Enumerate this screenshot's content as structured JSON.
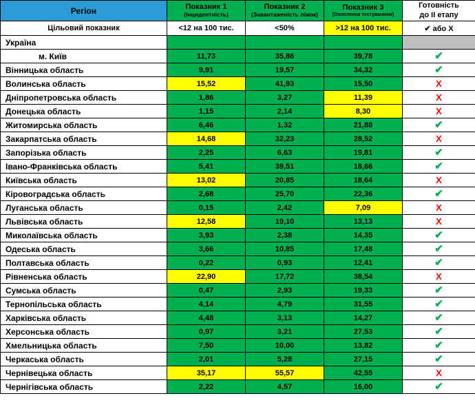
{
  "table": {
    "header": {
      "region": "Регіон",
      "indicators": [
        {
          "title": "Показник 1",
          "subtitle": "(Інцидентність)"
        },
        {
          "title": "Показник 2",
          "subtitle": "(Завантаженість ліжок)"
        },
        {
          "title": "Показник 3",
          "subtitle": "(Охоплення тестуванням)"
        }
      ],
      "readiness_title": "Готовність",
      "readiness_subtitle": "до II етапу"
    },
    "target": {
      "label": "Цільовий показник",
      "values": [
        "<12 на 100 тис.",
        "<50%",
        ">12 на 100 тис."
      ],
      "readiness": "✔ або Х"
    }
  },
  "symbols": {
    "check": "✔",
    "cross": "Х"
  },
  "colors": {
    "header_blue": "#2D9BD6",
    "cell_green": "#00B050",
    "highlight_yellow": "#FFFF00",
    "empty_gray": "#BFBFBF",
    "check_green": "#00B050",
    "cross_red": "#FF0000"
  },
  "chart_data": {
    "type": "table",
    "title": "Готовність регіонів до II етапу",
    "columns": [
      "Регіон",
      "Показник 1 (Інцидентність)",
      "Показник 2 (Завантаженість ліжок)",
      "Показник 3 (Охоплення тестуванням)",
      "Готовність до II етапу"
    ],
    "targets": [
      "<12 на 100 тис.",
      "<50%",
      ">12 на 100 тис.",
      "✔ або Х"
    ],
    "rows": [
      {
        "region": "Україна",
        "values": [
          "",
          "",
          ""
        ],
        "highlight": [
          false,
          false,
          false
        ],
        "status": "empty"
      },
      {
        "region": "м. Київ",
        "indent": true,
        "values": [
          "11,73",
          "35,86",
          "39,78"
        ],
        "highlight": [
          false,
          false,
          false
        ],
        "status": "check"
      },
      {
        "region": "Вінницька область",
        "values": [
          "9,91",
          "19,57",
          "34,32"
        ],
        "highlight": [
          false,
          false,
          false
        ],
        "status": "check"
      },
      {
        "region": "Волинська область",
        "values": [
          "15,52",
          "41,93",
          "15,50"
        ],
        "highlight": [
          true,
          false,
          false
        ],
        "status": "cross"
      },
      {
        "region": "Дніпропетровська область",
        "values": [
          "1,86",
          "3,27",
          "11,39"
        ],
        "highlight": [
          false,
          false,
          true
        ],
        "status": "cross"
      },
      {
        "region": "Донецька область",
        "values": [
          "1,15",
          "2,14",
          "8,30"
        ],
        "highlight": [
          false,
          false,
          true
        ],
        "status": "cross"
      },
      {
        "region": "Житомирська область",
        "values": [
          "6,46",
          "1,32",
          "21,88"
        ],
        "highlight": [
          false,
          false,
          false
        ],
        "status": "check"
      },
      {
        "region": "Закарпатська область",
        "values": [
          "14,68",
          "32,23",
          "28,52"
        ],
        "highlight": [
          true,
          false,
          false
        ],
        "status": "cross"
      },
      {
        "region": "Запорізька область",
        "values": [
          "2,25",
          "6,63",
          "19,81"
        ],
        "highlight": [
          false,
          false,
          false
        ],
        "status": "check"
      },
      {
        "region": "Івано-Франківська область",
        "values": [
          "5,41",
          "39,51",
          "18,66"
        ],
        "highlight": [
          false,
          false,
          false
        ],
        "status": "check"
      },
      {
        "region": "Київська область",
        "values": [
          "13,02",
          "20,85",
          "18,64"
        ],
        "highlight": [
          true,
          false,
          false
        ],
        "status": "cross"
      },
      {
        "region": "Кіровоградська область",
        "values": [
          "2,68",
          "25,70",
          "22,36"
        ],
        "highlight": [
          false,
          false,
          false
        ],
        "status": "check"
      },
      {
        "region": "Луганська область",
        "values": [
          "0,15",
          "2,42",
          "7,09"
        ],
        "highlight": [
          false,
          false,
          true
        ],
        "status": "cross"
      },
      {
        "region": "Львівська область",
        "values": [
          "12,58",
          "19,10",
          "13,13"
        ],
        "highlight": [
          true,
          false,
          false
        ],
        "status": "cross"
      },
      {
        "region": "Миколаївська область",
        "values": [
          "3,93",
          "2,38",
          "14,35"
        ],
        "highlight": [
          false,
          false,
          false
        ],
        "status": "check"
      },
      {
        "region": "Одеська область",
        "values": [
          "3,66",
          "10,85",
          "17,48"
        ],
        "highlight": [
          false,
          false,
          false
        ],
        "status": "check"
      },
      {
        "region": "Полтавська область",
        "values": [
          "0,22",
          "0,93",
          "12,41"
        ],
        "highlight": [
          false,
          false,
          false
        ],
        "status": "check"
      },
      {
        "region": "Рівненська область",
        "values": [
          "22,90",
          "17,72",
          "38,54"
        ],
        "highlight": [
          true,
          false,
          false
        ],
        "status": "cross"
      },
      {
        "region": "Сумська область",
        "values": [
          "0,47",
          "2,93",
          "19,33"
        ],
        "highlight": [
          false,
          false,
          false
        ],
        "status": "check"
      },
      {
        "region": "Тернопільська область",
        "values": [
          "4,14",
          "4,79",
          "31,55"
        ],
        "highlight": [
          false,
          false,
          false
        ],
        "status": "check"
      },
      {
        "region": "Харківська область",
        "values": [
          "4,48",
          "3,13",
          "14,27"
        ],
        "highlight": [
          false,
          false,
          false
        ],
        "status": "check"
      },
      {
        "region": "Херсонська область",
        "values": [
          "0,97",
          "3,21",
          "27,53"
        ],
        "highlight": [
          false,
          false,
          false
        ],
        "status": "check"
      },
      {
        "region": "Хмельницька область",
        "values": [
          "7,50",
          "10,00",
          "13,82"
        ],
        "highlight": [
          false,
          false,
          false
        ],
        "status": "check"
      },
      {
        "region": "Черкаська область",
        "values": [
          "2,01",
          "5,28",
          "27,15"
        ],
        "highlight": [
          false,
          false,
          false
        ],
        "status": "check"
      },
      {
        "region": "Чернівецька область",
        "values": [
          "35,17",
          "55,57",
          "42,55"
        ],
        "highlight": [
          true,
          true,
          false
        ],
        "status": "cross"
      },
      {
        "region": "Чернігівська область",
        "values": [
          "2,22",
          "4,57",
          "16,00"
        ],
        "highlight": [
          false,
          false,
          false
        ],
        "status": "check"
      }
    ]
  }
}
